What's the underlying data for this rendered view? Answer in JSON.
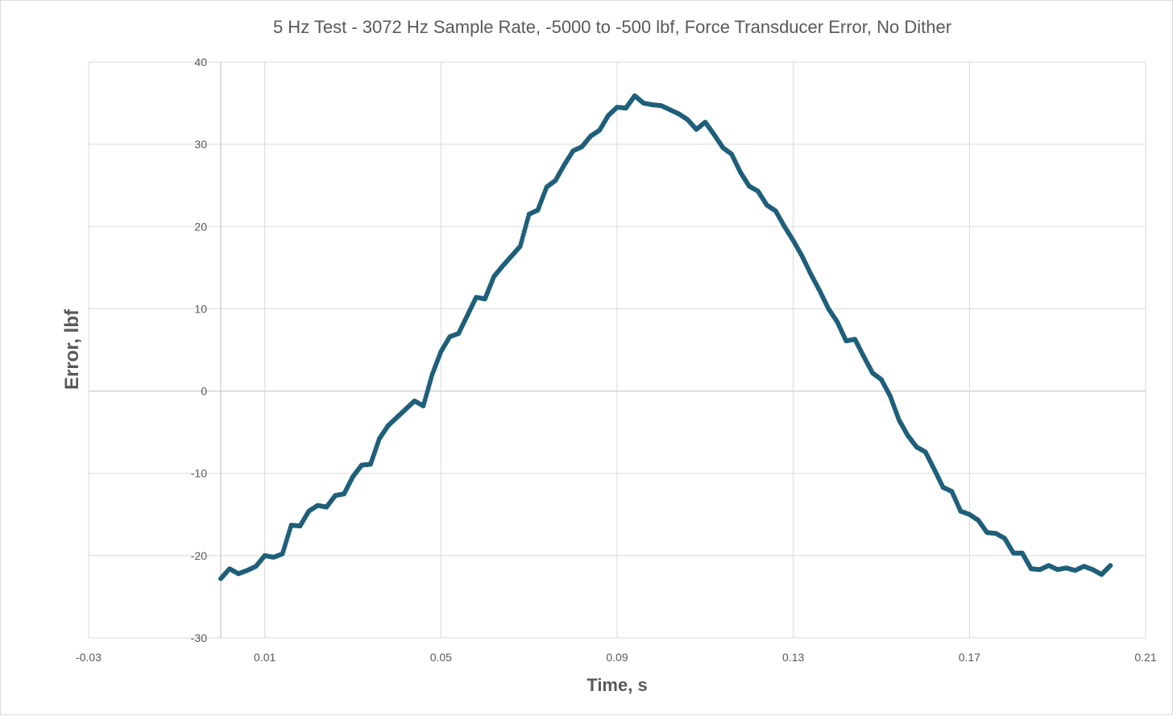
{
  "chart_data": {
    "type": "scatter",
    "title": "5 Hz Test - 3072 Hz Sample Rate, -5000 to -500 lbf, Force Transducer Error, No Dither",
    "xlabel": "Time, s",
    "ylabel": "Error, lbf",
    "xlim": [
      -0.03,
      0.21
    ],
    "ylim": [
      -30,
      40
    ],
    "x_ticks": [
      -0.03,
      0.01,
      0.05,
      0.09,
      0.13,
      0.17,
      0.21
    ],
    "x_tick_labels": [
      "-0.03",
      "0.01",
      "0.05",
      "0.09",
      "0.13",
      "0.17",
      "0.21"
    ],
    "y_ticks": [
      -30,
      -20,
      -10,
      0,
      10,
      20,
      30,
      40
    ],
    "y_tick_labels": [
      "-30",
      "-20",
      "-10",
      "0",
      "10",
      "20",
      "30",
      "40"
    ],
    "grid": true,
    "legend": "none",
    "marker_color": "#1f5f7a",
    "series": [
      {
        "x": [
          0.0,
          0.002,
          0.004,
          0.006,
          0.008,
          0.01,
          0.012,
          0.014,
          0.016,
          0.018,
          0.02,
          0.022,
          0.024,
          0.026,
          0.028,
          0.03,
          0.032,
          0.034,
          0.036,
          0.038,
          0.04,
          0.042,
          0.044,
          0.046,
          0.048,
          0.05,
          0.052,
          0.054,
          0.056,
          0.058,
          0.06,
          0.062,
          0.064,
          0.066,
          0.068,
          0.07,
          0.072,
          0.074,
          0.076,
          0.078,
          0.08,
          0.082,
          0.084,
          0.086,
          0.088,
          0.09,
          0.092,
          0.094,
          0.096,
          0.098,
          0.1,
          0.102,
          0.104,
          0.106,
          0.108,
          0.11,
          0.112,
          0.114,
          0.116,
          0.118,
          0.12,
          0.122,
          0.124,
          0.126,
          0.128,
          0.13,
          0.132,
          0.134,
          0.136,
          0.138,
          0.14,
          0.142,
          0.144,
          0.146,
          0.148,
          0.15,
          0.152,
          0.154,
          0.156,
          0.158,
          0.16,
          0.162,
          0.164,
          0.166,
          0.168,
          0.17,
          0.172,
          0.174,
          0.176,
          0.178,
          0.18,
          0.182,
          0.184,
          0.186,
          0.188,
          0.19,
          0.192,
          0.194,
          0.196,
          0.198,
          0.2,
          0.202
        ],
        "y": [
          -22.8,
          -21.6,
          -22.2,
          -21.8,
          -21.3,
          -20.0,
          -20.2,
          -19.8,
          -16.3,
          -16.4,
          -14.6,
          -13.9,
          -14.1,
          -12.7,
          -12.5,
          -10.4,
          -9.0,
          -8.9,
          -5.8,
          -4.2,
          -3.2,
          -2.2,
          -1.2,
          -1.8,
          2.0,
          4.8,
          6.6,
          7.0,
          9.2,
          11.4,
          11.2,
          13.9,
          15.2,
          16.4,
          17.6,
          21.5,
          22.0,
          24.8,
          25.6,
          27.5,
          29.2,
          29.7,
          31.0,
          31.7,
          33.5,
          34.5,
          34.4,
          35.9,
          35.0,
          34.8,
          34.7,
          34.2,
          33.7,
          33.0,
          31.8,
          32.7,
          31.2,
          29.6,
          28.8,
          26.6,
          24.9,
          24.3,
          22.6,
          21.9,
          20.0,
          18.3,
          16.4,
          14.2,
          12.2,
          10.0,
          8.4,
          6.1,
          6.3,
          4.2,
          2.2,
          1.4,
          -0.6,
          -3.5,
          -5.4,
          -6.8,
          -7.4,
          -9.5,
          -11.7,
          -12.2,
          -14.6,
          -15.0,
          -15.7,
          -17.2,
          -17.3,
          -17.9,
          -19.7,
          -19.7,
          -21.6,
          -21.7,
          -21.2,
          -21.7,
          -21.5,
          -21.8,
          -21.3,
          -21.7,
          -22.3,
          -21.2
        ]
      }
    ]
  }
}
